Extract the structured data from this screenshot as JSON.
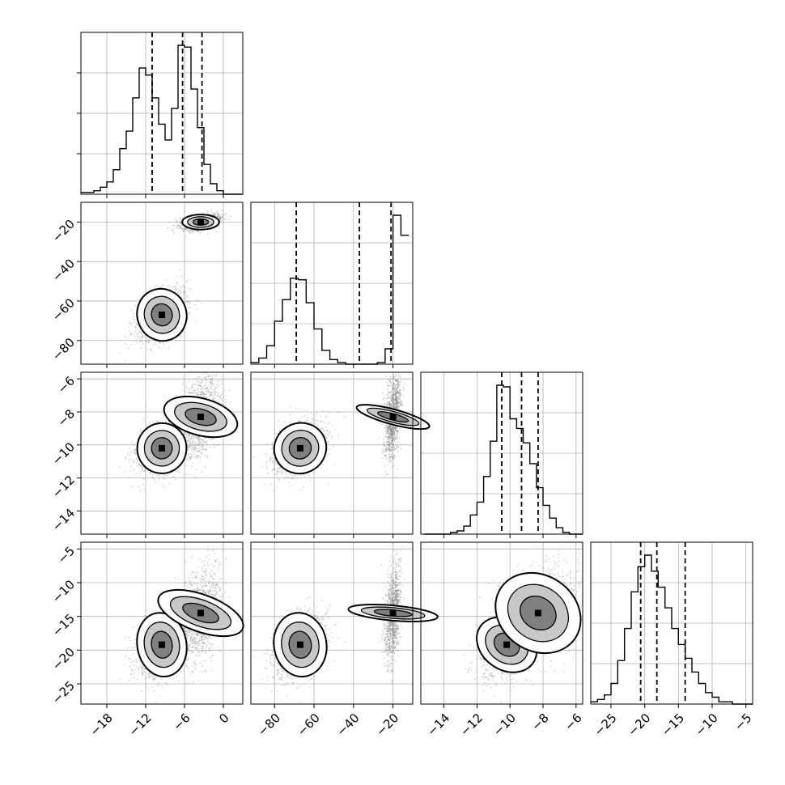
{
  "chart_data": {
    "type": "corner",
    "title": "",
    "colors": {
      "line": "#000000",
      "scatter": "#808080",
      "grid": "#b0b0b0",
      "background": "#ffffff"
    },
    "grid": true,
    "parameters": [
      {
        "range": [
          -22,
          3
        ],
        "ticks": [
          -18,
          -12,
          -6,
          0
        ],
        "tick_labels": [
          "−18",
          "−12",
          "−6",
          "0"
        ]
      },
      {
        "range": [
          -92,
          -10
        ],
        "ticks": [
          -80,
          -60,
          -40,
          -20
        ],
        "tick_labels": [
          "−80",
          "−60",
          "−40",
          "−20"
        ]
      },
      {
        "range": [
          -15.4,
          -5.6
        ],
        "ticks": [
          -14,
          -12,
          -10,
          -8,
          -6
        ],
        "tick_labels": [
          "−14",
          "−12",
          "−10",
          "−8",
          "−6"
        ]
      },
      {
        "range": [
          -28,
          -4
        ],
        "ticks": [
          -25,
          -20,
          -15,
          -10,
          -5
        ],
        "tick_labels": [
          "−25",
          "−20",
          "−15",
          "−10",
          "−5"
        ]
      }
    ],
    "histograms": [
      {
        "param": 0,
        "bins": [
          -22,
          -21,
          -20,
          -19,
          -18,
          -17,
          -16,
          -15,
          -14,
          -13,
          -12,
          -11,
          -10,
          -9,
          -8,
          -7,
          -6,
          -5,
          -4,
          -3,
          -2,
          -1,
          0,
          1,
          2,
          3
        ],
        "counts": [
          0.01,
          0.01,
          0.02,
          0.04,
          0.07,
          0.14,
          0.26,
          0.36,
          0.55,
          0.72,
          0.68,
          0.55,
          0.4,
          0.31,
          0.49,
          0.85,
          0.84,
          0.6,
          0.38,
          0.17,
          0.06,
          0.02,
          0,
          0,
          0
        ],
        "quantiles": [
          -11,
          -6.3,
          -3.3
        ]
      },
      {
        "param": 1,
        "bins": [
          -92,
          -88,
          -84,
          -80,
          -76,
          -72,
          -68,
          -64,
          -60,
          -56,
          -52,
          -48,
          -44,
          -40,
          -36,
          -32,
          -28,
          -24,
          -20,
          -16,
          -12
        ],
        "counts": [
          0.01,
          0.04,
          0.12,
          0.28,
          0.42,
          0.56,
          0.55,
          0.4,
          0.23,
          0.09,
          0.03,
          0.01,
          0,
          0,
          0,
          0,
          0.01,
          0.1,
          0.97,
          0.84
        ],
        "quantiles": [
          -69,
          -37,
          -21
        ]
      },
      {
        "param": 2,
        "bins": [
          -15.2,
          -14.8,
          -14.4,
          -14,
          -13.6,
          -13.2,
          -12.8,
          -12.4,
          -12,
          -11.6,
          -11.2,
          -10.8,
          -10.4,
          -10,
          -9.6,
          -9.2,
          -8.8,
          -8.4,
          -8,
          -7.6,
          -7.2,
          -6.8,
          -6.4,
          -6,
          -5.6
        ],
        "counts": [
          0,
          0,
          0,
          0,
          0.01,
          0.02,
          0.05,
          0.12,
          0.2,
          0.36,
          0.58,
          0.93,
          0.92,
          0.72,
          0.66,
          0.57,
          0.44,
          0.29,
          0.18,
          0.1,
          0.04,
          0.01,
          0,
          0
        ],
        "quantiles": [
          -10.5,
          -9.3,
          -8.3
        ]
      },
      {
        "param": 3,
        "bins": [
          -28,
          -27,
          -26,
          -25,
          -24,
          -23,
          -22,
          -21,
          -20,
          -19,
          -18,
          -17,
          -16,
          -15,
          -14,
          -13,
          -12,
          -11,
          -10,
          -9,
          -8,
          -7,
          -6,
          -5,
          -4
        ],
        "counts": [
          0.01,
          0.02,
          0.04,
          0.09,
          0.19,
          0.33,
          0.49,
          0.6,
          0.65,
          0.58,
          0.51,
          0.42,
          0.33,
          0.26,
          0.2,
          0.14,
          0.09,
          0.05,
          0.03,
          0.01,
          0.01,
          0,
          0,
          0
        ],
        "quantiles": [
          -20.6,
          -18.2,
          -14
        ]
      }
    ],
    "modes": [
      {
        "weight": 0.52,
        "mean": [
          -9.5,
          -67,
          -10.2,
          -19.2
        ],
        "sd": [
          2.0,
          7.0,
          0.8,
          2.5
        ],
        "contour_tilt": {
          "1-0": 20,
          "2-0": -5,
          "2-1": 25,
          "3-0": 10,
          "3-1": 10,
          "3-2": 55
        }
      },
      {
        "weight": 0.48,
        "mean": [
          -3.5,
          -20,
          -8.3,
          -14.5
        ],
        "sd": [
          1.5,
          2.0,
          1.2,
          3.5
        ],
        "contour_tilt": {
          "1-0": 0,
          "2-0": 75,
          "2-1": 75,
          "3-0": 70,
          "3-1": 85,
          "3-2": 55
        }
      }
    ]
  }
}
